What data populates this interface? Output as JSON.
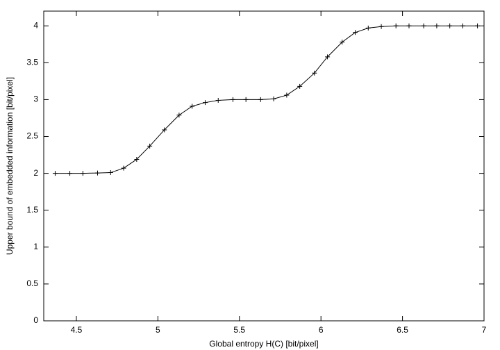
{
  "chart_data": {
    "type": "line",
    "x_label": "Global entropy H(C)  [bit/pixel]",
    "y_label": "Upper bound of embedded information [bit/pixel]",
    "x": [
      4.37,
      4.46,
      4.54,
      4.63,
      4.71,
      4.79,
      4.87,
      4.95,
      5.04,
      5.13,
      5.21,
      5.29,
      5.37,
      5.46,
      5.54,
      5.63,
      5.71,
      5.79,
      5.87,
      5.96,
      6.04,
      6.13,
      6.21,
      6.29,
      6.37,
      6.46,
      6.54,
      6.63,
      6.71,
      6.79,
      6.87,
      6.96
    ],
    "values": [
      2,
      2,
      2,
      2.005,
      2.01,
      2.07,
      2.19,
      2.37,
      2.59,
      2.79,
      2.91,
      2.96,
      2.99,
      3.0,
      3.0,
      3.0,
      3.01,
      3.06,
      3.18,
      3.36,
      3.58,
      3.78,
      3.91,
      3.97,
      3.99,
      4.0,
      4.0,
      4.0,
      4.0,
      4.0,
      4.0,
      4.0
    ],
    "color": "#000000",
    "marker": "+",
    "xlim": [
      4.3,
      7
    ],
    "xticks": [
      4.5,
      5,
      5.5,
      6,
      6.5,
      7
    ],
    "ylim": [
      0,
      4.2
    ],
    "yticks": [
      0,
      0.5,
      1,
      1.5,
      2,
      2.5,
      3,
      3.5,
      4
    ],
    "grid": false
  }
}
